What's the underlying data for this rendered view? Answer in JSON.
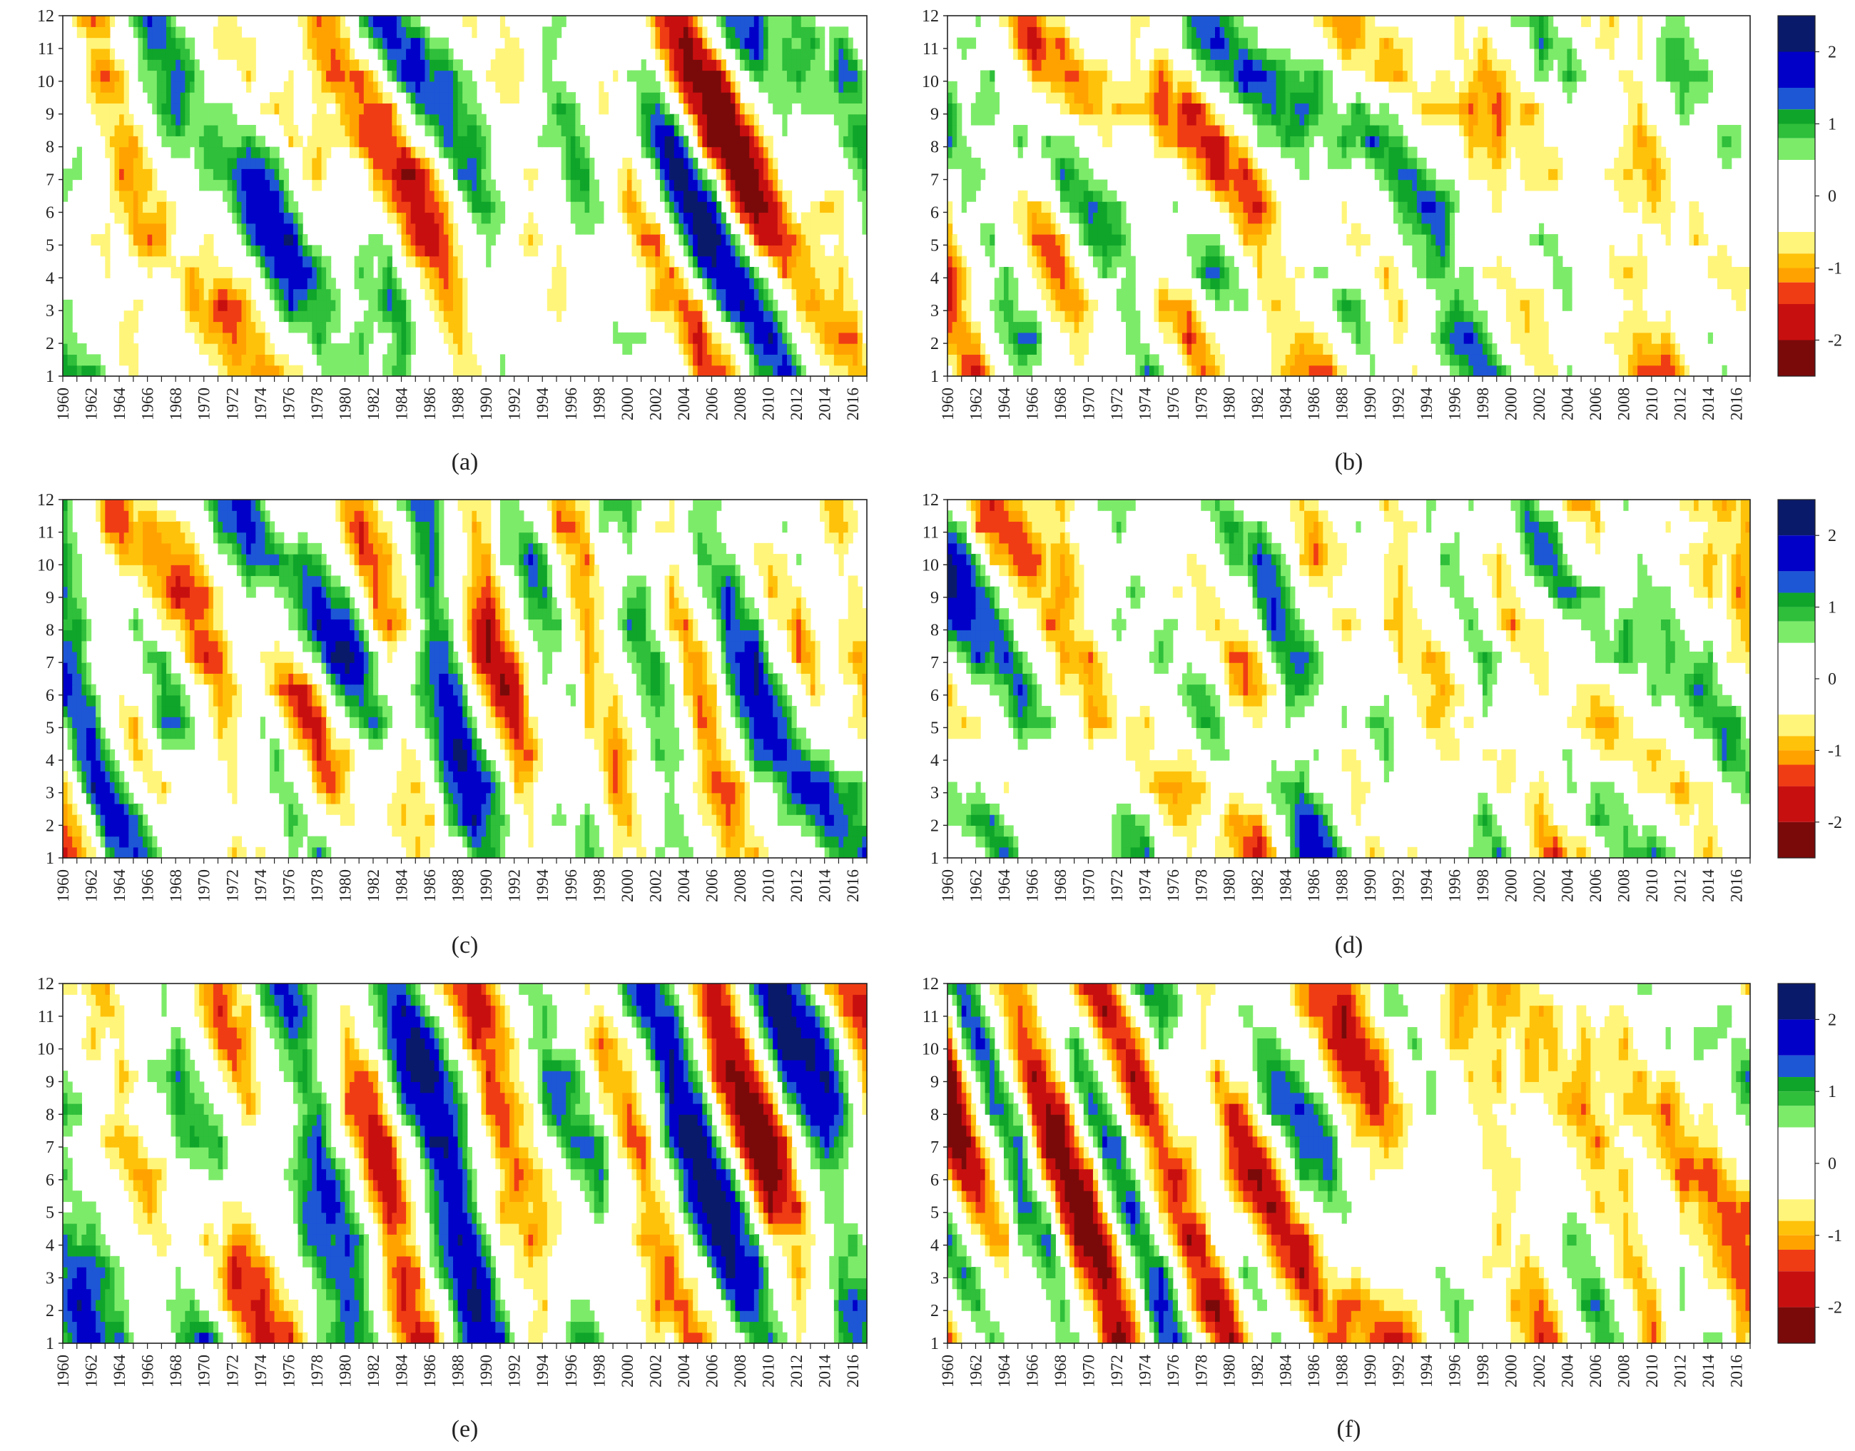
{
  "chart_data": {
    "type": "heatmap",
    "description_scale": "standardized index, months (y) by year (x)",
    "x_ticks": [
      "1960",
      "1962",
      "1964",
      "1966",
      "1968",
      "1970",
      "1972",
      "1974",
      "1976",
      "1978",
      "1980",
      "1982",
      "1984",
      "1986",
      "1988",
      "1990",
      "1992",
      "1994",
      "1996",
      "1998",
      "2000",
      "2002",
      "2004",
      "2006",
      "2008",
      "2010",
      "2012",
      "2014",
      "2016"
    ],
    "y_ticks": [
      "1",
      "2",
      "3",
      "4",
      "5",
      "6",
      "7",
      "8",
      "9",
      "10",
      "11",
      "12"
    ],
    "x_range": [
      1960,
      2017
    ],
    "y_range": [
      1,
      12
    ],
    "colorbar": {
      "levels": [
        {
          "min": 2.0,
          "max": null,
          "color": "#0a1a6b"
        },
        {
          "min": 1.5,
          "max": 2.0,
          "color": "#0000c8"
        },
        {
          "min": 1.2,
          "max": 1.5,
          "color": "#1d57d6"
        },
        {
          "min": 1.0,
          "max": 1.2,
          "color": "#0fa52a"
        },
        {
          "min": 0.8,
          "max": 1.0,
          "color": "#2fbf3a"
        },
        {
          "min": 0.5,
          "max": 0.8,
          "color": "#7deb6a"
        },
        {
          "min": -0.5,
          "max": 0.5,
          "color": "#ffffff"
        },
        {
          "min": -0.8,
          "max": -0.5,
          "color": "#fff57a"
        },
        {
          "min": -1.0,
          "max": -0.8,
          "color": "#ffc20a"
        },
        {
          "min": -1.2,
          "max": -1.0,
          "color": "#ffa200"
        },
        {
          "min": -1.5,
          "max": -1.2,
          "color": "#f03c14"
        },
        {
          "min": -2.0,
          "max": -1.5,
          "color": "#c80f0f"
        },
        {
          "min": null,
          "max": -2.0,
          "color": "#7a0a0a"
        }
      ],
      "tick_labels": [
        "2",
        "1",
        "0",
        "-1",
        "-2"
      ],
      "tick_values": [
        2,
        1,
        0,
        -1,
        -2
      ]
    },
    "panels": [
      {
        "label": "(a)",
        "seed": 11,
        "bias": 0.0,
        "amp": 1.25
      },
      {
        "label": "(b)",
        "seed": 23,
        "bias": -0.05,
        "amp": 0.95
      },
      {
        "label": "(c)",
        "seed": 37,
        "bias": 0.05,
        "amp": 1.1
      },
      {
        "label": "(d)",
        "seed": 41,
        "bias": 0.0,
        "amp": 1.3
      },
      {
        "label": "(e)",
        "seed": 53,
        "bias": 0.1,
        "amp": 1.3
      },
      {
        "label": "(f)",
        "seed": 67,
        "bias": -0.35,
        "amp": 1.3
      }
    ]
  }
}
